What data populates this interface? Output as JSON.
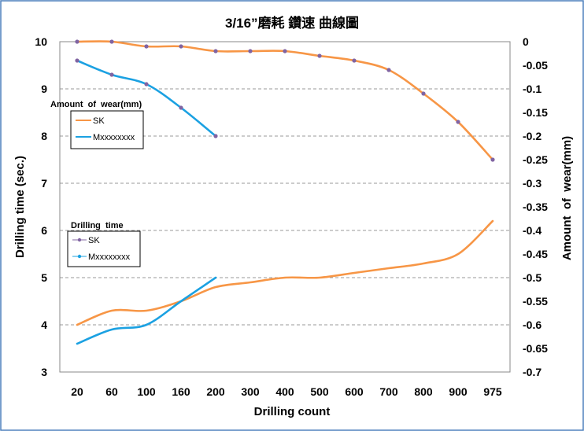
{
  "chart_data": {
    "type": "line",
    "title": "3/16”磨耗 鑽速 曲線圖",
    "xlabel": "Drilling count",
    "ylabel_left": "Drilling time (sec.)",
    "ylabel_right": "Amount  of  wear(mm)",
    "categories": [
      "20",
      "60",
      "100",
      "160",
      "200",
      "300",
      "400",
      "500",
      "600",
      "700",
      "800",
      "900",
      "975"
    ],
    "left_axis": {
      "min": 3,
      "max": 10,
      "ticks": [
        "3",
        "4",
        "5",
        "6",
        "7",
        "8",
        "9",
        "10"
      ]
    },
    "right_axis": {
      "min": -0.7,
      "max": 0,
      "ticks": [
        "0",
        "-0.05",
        "-0.1",
        "-0.15",
        "-0.2",
        "-0.25",
        "-0.3",
        "-0.35",
        "-0.4",
        "-0.45",
        "-0.5",
        "-0.55",
        "-0.6",
        "-0.65",
        "-0.7"
      ]
    },
    "grid": true,
    "legend_wear": {
      "title": "Amount  of  wear(mm)",
      "entries": [
        "SK",
        "Mxxxxxxxx"
      ]
    },
    "legend_time": {
      "title": "Drilling  time",
      "entries": [
        "SK",
        "Mxxxxxxxx"
      ]
    },
    "series": [
      {
        "name": "SK",
        "group": "wear",
        "axis": "right",
        "color": "#F79646",
        "markers": true,
        "values": [
          0,
          0,
          -0.01,
          -0.01,
          -0.02,
          -0.02,
          -0.02,
          -0.03,
          -0.04,
          -0.06,
          -0.11,
          -0.17,
          -0.25
        ]
      },
      {
        "name": "Mxxxxxxxx",
        "group": "wear",
        "axis": "right",
        "color": "#1BA1E2",
        "markers": true,
        "values": [
          -0.04,
          -0.07,
          -0.09,
          -0.14,
          -0.2,
          null,
          null,
          null,
          null,
          null,
          null,
          null,
          null
        ]
      },
      {
        "name": "SK",
        "group": "time",
        "axis": "left",
        "color": "#F79646",
        "markers": false,
        "values": [
          4.0,
          4.3,
          4.3,
          4.5,
          4.8,
          4.9,
          5.0,
          5.0,
          5.1,
          5.2,
          5.3,
          5.5,
          6.2
        ]
      },
      {
        "name": "Mxxxxxxxx",
        "group": "time",
        "axis": "left",
        "color": "#1BA1E2",
        "markers": false,
        "values": [
          3.6,
          3.9,
          4.0,
          4.5,
          5.0,
          null,
          null,
          null,
          null,
          null,
          null,
          null,
          null
        ]
      }
    ],
    "marker_color": "#8064A2"
  }
}
